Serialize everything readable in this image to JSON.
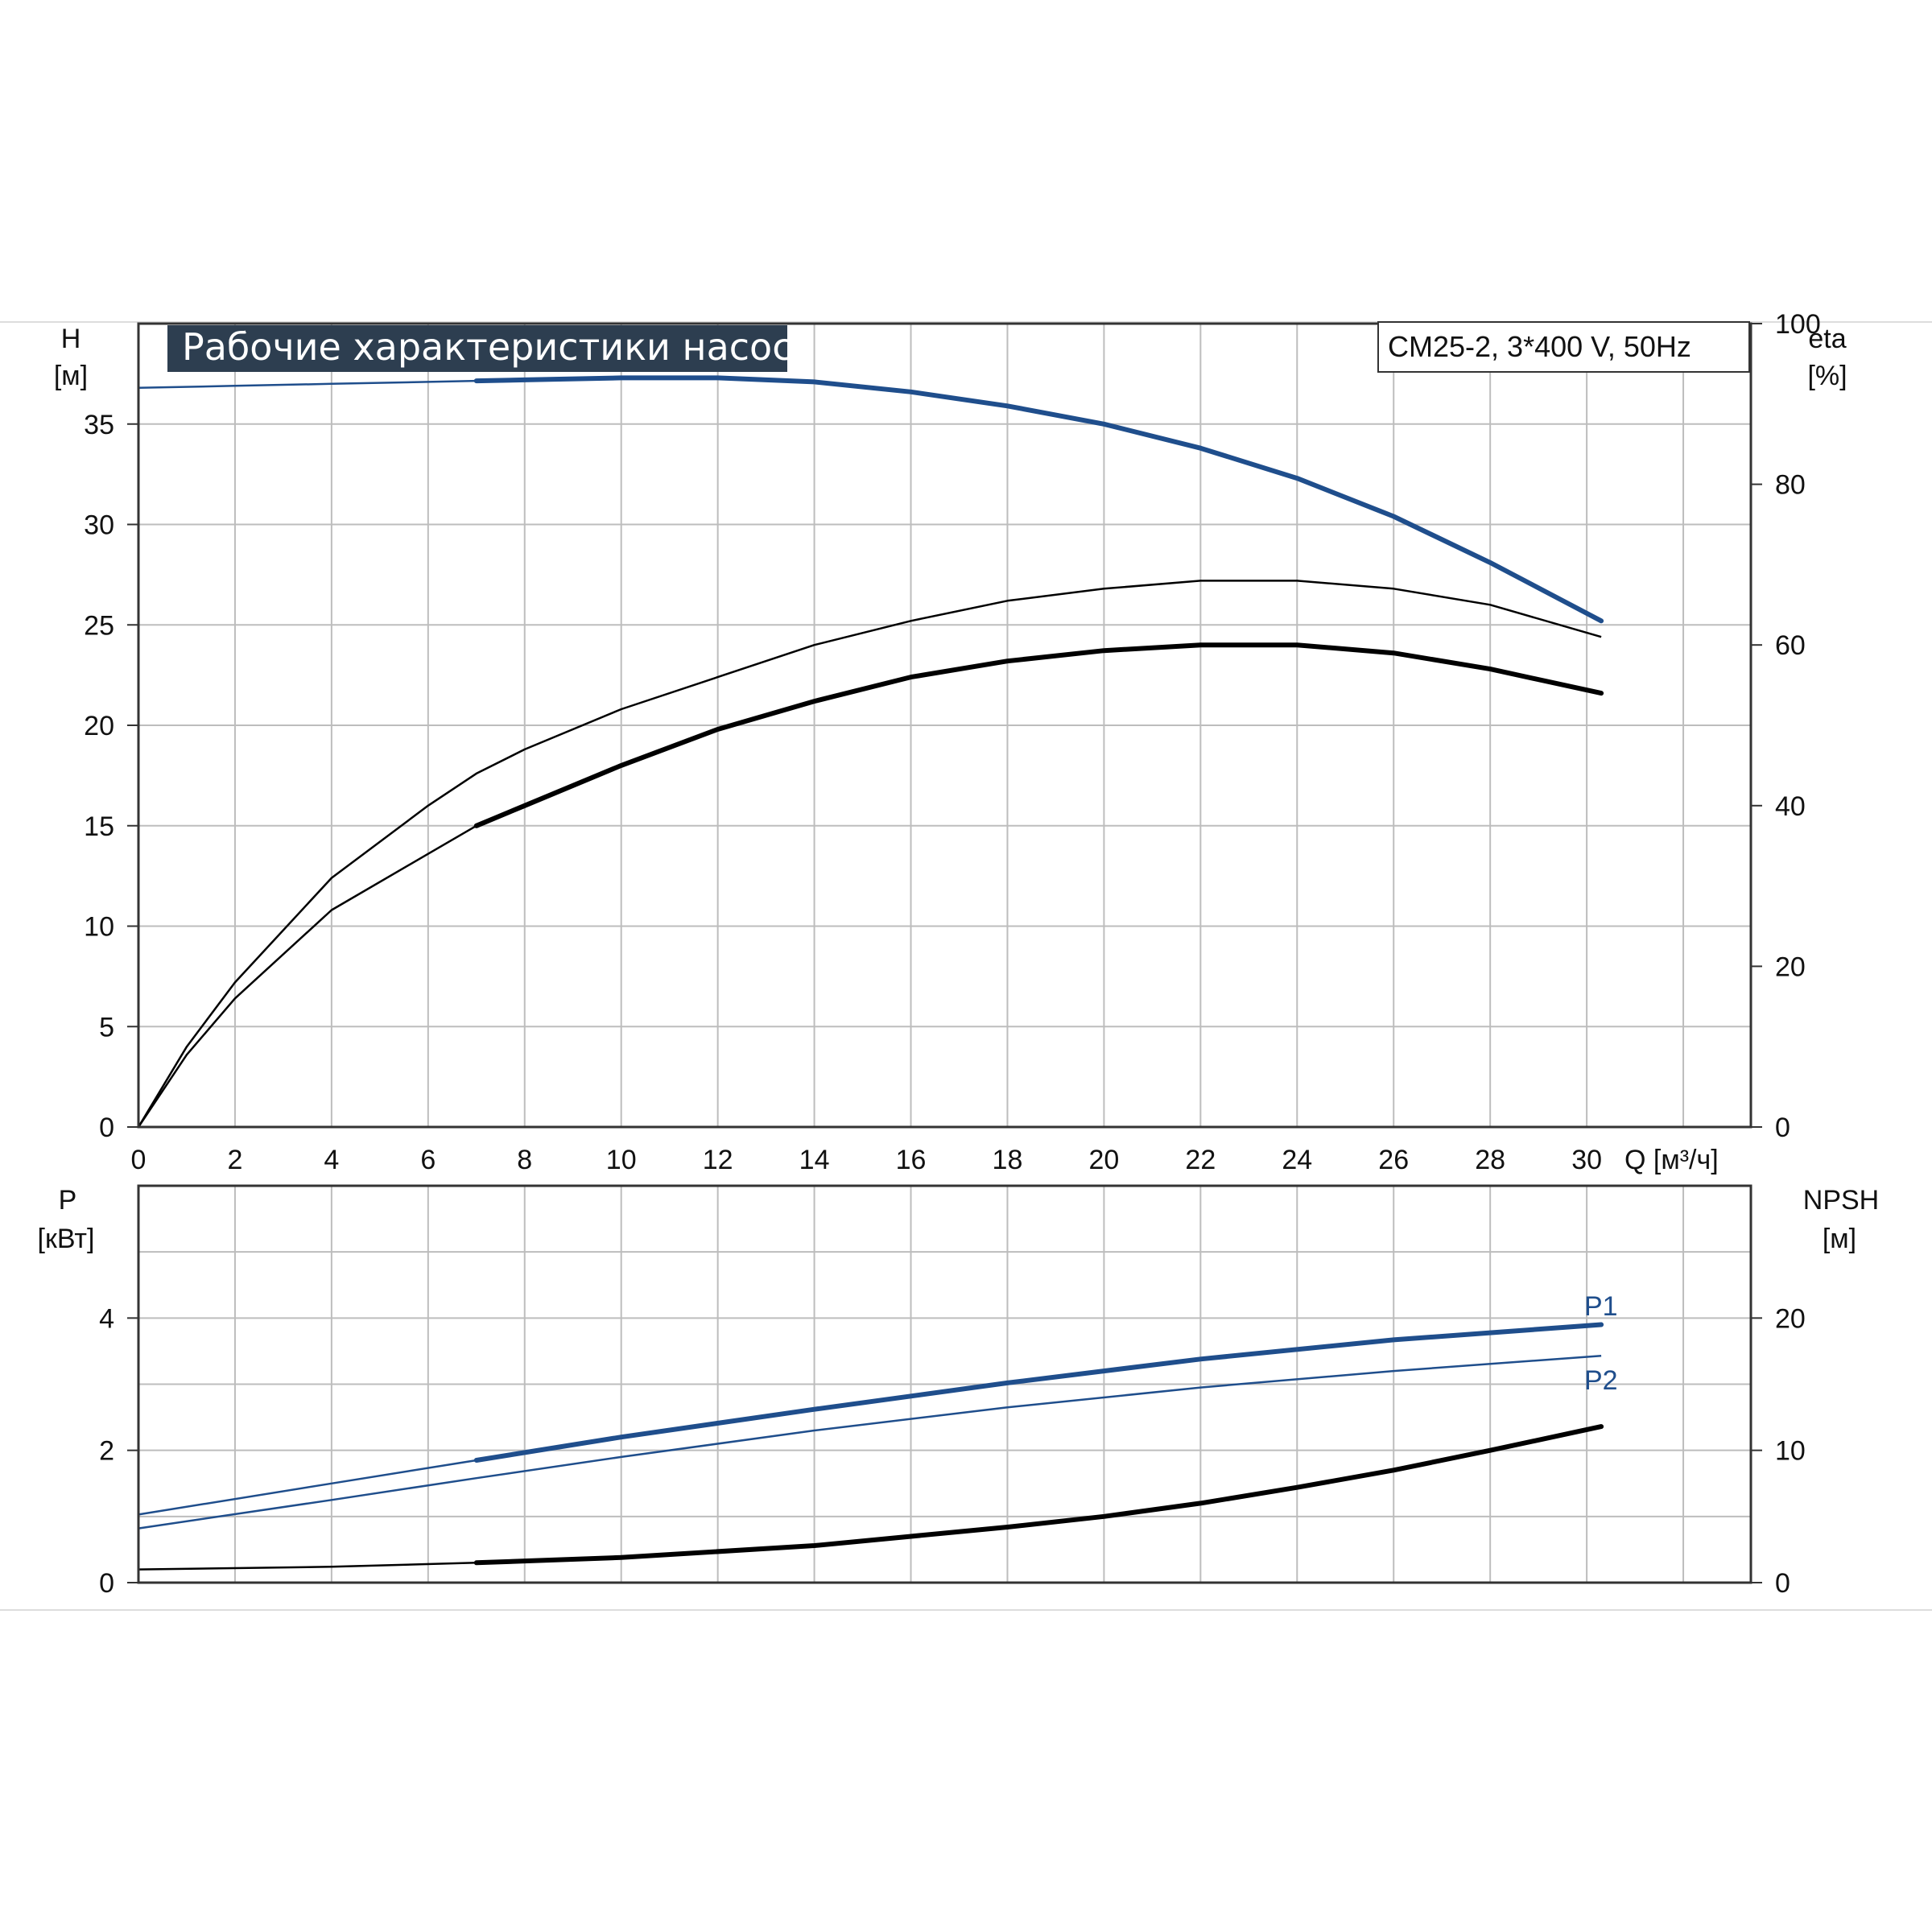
{
  "colors": {
    "curve_blue": "#1f4e8c",
    "curve_black": "#000000",
    "grid": "#bdbdbd",
    "title_bg": "#2d3e50",
    "frame": "#333333"
  },
  "chart_data": [
    {
      "type": "line",
      "title": "Рабочие характеристики насоса",
      "model_label": "CM25-2, 3*400 V, 50Hz",
      "xlabel": "Q [м³/ч]",
      "x_ticks": [
        "0",
        "2",
        "4",
        "6",
        "8",
        "10",
        "12",
        "14",
        "16",
        "18",
        "20",
        "22",
        "24",
        "26",
        "28",
        "30"
      ],
      "xlim": [
        0,
        33.4
      ],
      "left_axis": {
        "label": "H",
        "unit": "[м]",
        "ylim": [
          0,
          40
        ],
        "ticks": [
          "0",
          "5",
          "10",
          "15",
          "20",
          "25",
          "30",
          "35"
        ]
      },
      "right_axis": {
        "label": "eta",
        "unit": "[%]",
        "ylim": [
          0,
          100
        ],
        "ticks": [
          "0",
          "20",
          "40",
          "60",
          "80",
          "100"
        ],
        "tick_values": [
          0,
          20,
          40,
          60,
          80,
          100
        ]
      },
      "grid": true,
      "series": [
        {
          "axis": "left",
          "color": "blue",
          "x": [
            0,
            2,
            4,
            6,
            7,
            8,
            10,
            12,
            14,
            16,
            18,
            20,
            22,
            24,
            26,
            28,
            30.3
          ],
          "y": [
            36.8,
            36.9,
            37.0,
            37.1,
            37.15,
            37.2,
            37.3,
            37.3,
            37.1,
            36.6,
            35.9,
            35.0,
            33.8,
            32.3,
            30.4,
            28.1,
            25.2
          ],
          "main_from": 7
        },
        {
          "axis": "right",
          "color": "black",
          "x": [
            0,
            1,
            2,
            4,
            6,
            7,
            8,
            10,
            12,
            14,
            16,
            18,
            20,
            22,
            24,
            26,
            28,
            30.3
          ],
          "y": [
            0,
            10,
            18,
            31,
            40,
            44,
            47,
            52,
            56,
            60,
            63,
            65.5,
            67,
            68,
            68,
            67,
            65,
            61
          ],
          "main_from": null
        },
        {
          "axis": "right",
          "color": "black",
          "x": [
            0,
            1,
            2,
            4,
            6,
            7,
            8,
            10,
            12,
            14,
            16,
            18,
            20,
            22,
            24,
            26,
            28,
            30.3
          ],
          "y": [
            0,
            9,
            16,
            27,
            34,
            37.5,
            40,
            45,
            49.5,
            53,
            56,
            58,
            59.3,
            60,
            60,
            59,
            57,
            54
          ],
          "main_from": 7
        }
      ]
    },
    {
      "type": "line",
      "x_ticks": [],
      "xlim": [
        0,
        33.4
      ],
      "left_axis": {
        "label": "P",
        "unit": "[кВт]",
        "ylim": [
          0,
          6
        ],
        "ticks": [
          "0",
          "2",
          "4"
        ]
      },
      "right_axis": {
        "label": "NPSH",
        "unit": "[м]",
        "ylim": [
          0,
          30
        ],
        "ticks": [
          "0",
          "10",
          "20"
        ],
        "tick_values": [
          0,
          10,
          20
        ]
      },
      "grid": true,
      "series": [
        {
          "name": "P1",
          "axis": "left",
          "color": "blue",
          "x": [
            0,
            4,
            7,
            10,
            14,
            18,
            22,
            26,
            30.3
          ],
          "y": [
            1.03,
            1.5,
            1.85,
            2.2,
            2.62,
            3.02,
            3.38,
            3.67,
            3.9
          ],
          "main_from": 7
        },
        {
          "name": "P2",
          "axis": "left",
          "color": "blue",
          "x": [
            0,
            4,
            7,
            10,
            14,
            18,
            22,
            26,
            30.3
          ],
          "y": [
            0.82,
            1.25,
            1.58,
            1.9,
            2.3,
            2.65,
            2.95,
            3.2,
            3.43
          ],
          "main_from": null
        },
        {
          "axis": "right",
          "color": "black",
          "x": [
            0,
            4,
            7,
            10,
            14,
            18,
            20,
            22,
            24,
            26,
            28,
            30.3
          ],
          "y": [
            1.0,
            1.2,
            1.5,
            1.9,
            2.8,
            4.2,
            5.0,
            6.0,
            7.2,
            8.5,
            10.0,
            11.8
          ],
          "main_from": 7
        }
      ]
    }
  ]
}
